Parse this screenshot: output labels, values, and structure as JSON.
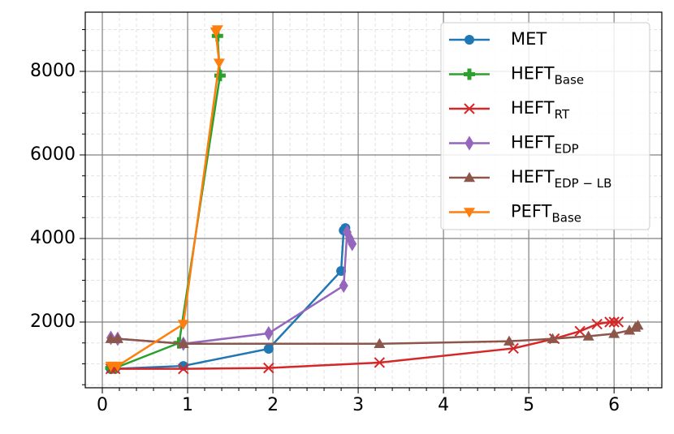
{
  "chart_data": {
    "type": "line",
    "xlim": [
      -0.2,
      6.56
    ],
    "ylim": [
      427,
      9417
    ],
    "xticks": [
      0,
      1,
      2,
      3,
      4,
      5,
      6
    ],
    "yticks": [
      2000,
      4000,
      6000,
      8000
    ],
    "xminorticks": [
      0.2,
      0.4,
      0.6,
      0.8,
      1.2,
      1.4,
      1.6,
      1.8,
      2.2,
      2.4,
      2.6,
      2.8,
      3.2,
      3.4,
      3.6,
      3.8,
      4.2,
      4.4,
      4.6,
      4.8,
      5.2,
      5.4,
      5.6,
      5.8,
      6.2,
      6.4
    ],
    "yminorticks": [
      500,
      1000,
      1500,
      2500,
      3000,
      3500,
      4500,
      5000,
      5500,
      6500,
      7000,
      7500,
      8500,
      9000
    ],
    "grid": true,
    "legend": "upper right",
    "series": [
      {
        "name": "MET",
        "color": "#1f77b4",
        "marker": "circle",
        "x": [
          0.1,
          0.15,
          0.95,
          1.95,
          2.8,
          2.83,
          2.85
        ],
        "values": [
          874,
          880,
          950,
          1359,
          3223,
          4194,
          4250
        ]
      },
      {
        "name": "HEFT",
        "name_sub": "Base",
        "color": "#2ca02c",
        "marker": "plus",
        "x": [
          0.1,
          0.15,
          0.9,
          1.38,
          1.35
        ],
        "values": [
          900,
          900,
          1500,
          7900,
          8850
        ]
      },
      {
        "name": "HEFT",
        "name_sub": "RT",
        "color": "#d62728",
        "marker": "x",
        "x": [
          0.1,
          0.15,
          0.95,
          1.95,
          3.25,
          4.82,
          5.3,
          5.6,
          5.8,
          5.95,
          6.0,
          6.05
        ],
        "values": [
          880,
          880,
          880,
          900,
          1030,
          1370,
          1600,
          1780,
          1950,
          2000,
          2000,
          2000
        ]
      },
      {
        "name": "HEFT",
        "name_sub": "EDP",
        "color": "#9467bd",
        "marker": "diamond",
        "x": [
          0.1,
          0.18,
          0.95,
          1.95,
          2.83,
          2.87,
          2.9,
          2.93
        ],
        "values": [
          1620,
          1600,
          1480,
          1730,
          2870,
          4150,
          4000,
          3870
        ]
      },
      {
        "name": "HEFT",
        "name_sub": "EDP − LB",
        "color": "#8c564b",
        "marker": "triangle-up",
        "x": [
          0.1,
          0.18,
          0.95,
          3.25,
          4.77,
          5.28,
          5.7,
          6.0,
          6.18,
          6.25,
          6.28
        ],
        "values": [
          1600,
          1600,
          1480,
          1480,
          1540,
          1600,
          1660,
          1720,
          1800,
          1870,
          1920
        ]
      },
      {
        "name": "PEFT",
        "name_sub": "Base",
        "color": "#ff7f0e",
        "marker": "triangle-down",
        "x": [
          0.1,
          0.18,
          0.95,
          1.37,
          1.33,
          1.35
        ],
        "values": [
          950,
          950,
          1950,
          8200,
          8950,
          9000
        ]
      }
    ]
  }
}
